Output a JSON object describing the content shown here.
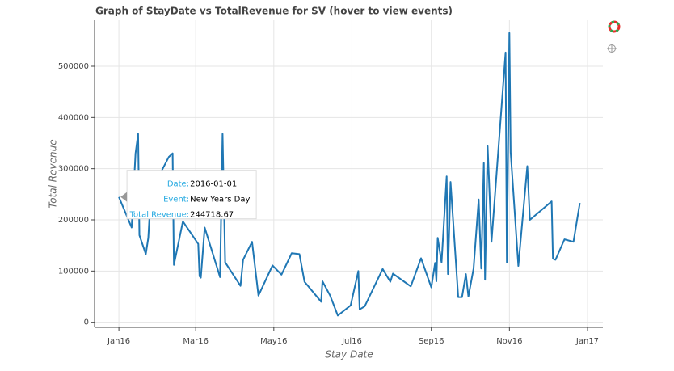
{
  "chart_data": {
    "type": "line",
    "title": "Graph of StayDate vs TotalRevenue for SV (hover to view events)",
    "x_label": "Stay Date",
    "y_label": "Total Revenue",
    "x": [
      "2016-01-01",
      "2016-01-11",
      "2016-01-14",
      "2016-01-16",
      "2016-01-17",
      "2016-01-22",
      "2016-01-24",
      "2016-01-26",
      "2016-02-09",
      "2016-02-12",
      "2016-02-13",
      "2016-02-20",
      "2016-03-03",
      "2016-03-04",
      "2016-03-05",
      "2016-03-08",
      "2016-03-20",
      "2016-03-22",
      "2016-03-24",
      "2016-04-05",
      "2016-04-07",
      "2016-04-14",
      "2016-04-19",
      "2016-04-30",
      "2016-05-07",
      "2016-05-15",
      "2016-05-21",
      "2016-05-25",
      "2016-06-07",
      "2016-06-08",
      "2016-06-14",
      "2016-06-20",
      "2016-06-30",
      "2016-07-06",
      "2016-07-07",
      "2016-07-11",
      "2016-07-25",
      "2016-07-31",
      "2016-08-02",
      "2016-08-16",
      "2016-08-24",
      "2016-09-01",
      "2016-09-04",
      "2016-09-05",
      "2016-09-06",
      "2016-09-09",
      "2016-09-13",
      "2016-09-14",
      "2016-09-16",
      "2016-09-22",
      "2016-09-25",
      "2016-09-28",
      "2016-09-30",
      "2016-10-04",
      "2016-10-08",
      "2016-10-10",
      "2016-10-12",
      "2016-10-13",
      "2016-10-15",
      "2016-10-18",
      "2016-10-29",
      "2016-10-30",
      "2016-11-01",
      "2016-11-02",
      "2016-11-08",
      "2016-11-15",
      "2016-11-17",
      "2016-12-04",
      "2016-12-05",
      "2016-12-07",
      "2016-12-14",
      "2016-12-21",
      "2016-12-26"
    ],
    "series": [
      {
        "name": "TotalRevenue",
        "color": "#1f77b4",
        "values": [
          244718.67,
          185000,
          330000,
          368000,
          170000,
          133000,
          165000,
          255000,
          323000,
          330000,
          112000,
          197000,
          153000,
          90000,
          87000,
          185000,
          88000,
          368000,
          117000,
          71000,
          122000,
          157000,
          52000,
          111000,
          93000,
          135000,
          133000,
          79000,
          40000,
          80000,
          52000,
          13000,
          33000,
          100000,
          25000,
          31000,
          104000,
          79000,
          95000,
          70000,
          125000,
          68000,
          116000,
          80000,
          165000,
          117000,
          285000,
          94000,
          274000,
          49000,
          49000,
          94000,
          50000,
          105000,
          240000,
          105000,
          311000,
          83000,
          344000,
          157000,
          527000,
          117000,
          565000,
          332000,
          110000,
          305000,
          200000,
          236000,
          124000,
          122000,
          162000,
          157000,
          233000
        ]
      }
    ],
    "xlim": [
      "2015-12-13",
      "2017-01-13"
    ],
    "xticks": [
      {
        "value": "2016-01-01",
        "label": "Jan16"
      },
      {
        "value": "2016-03-01",
        "label": "Mar16"
      },
      {
        "value": "2016-05-01",
        "label": "May16"
      },
      {
        "value": "2016-07-01",
        "label": "Jul16"
      },
      {
        "value": "2016-09-01",
        "label": "Sep16"
      },
      {
        "value": "2016-11-01",
        "label": "Nov16"
      },
      {
        "value": "2017-01-01",
        "label": "Jan17"
      }
    ],
    "ylim": [
      -10000,
      590000
    ],
    "yticks": [
      0,
      100000,
      200000,
      300000,
      400000,
      500000
    ],
    "grid": true,
    "tooltip": {
      "labels": [
        "Date:",
        "Event:",
        "Total Revenue:"
      ],
      "values": [
        "2016-01-01",
        "New Years Day",
        244718.67
      ]
    }
  }
}
